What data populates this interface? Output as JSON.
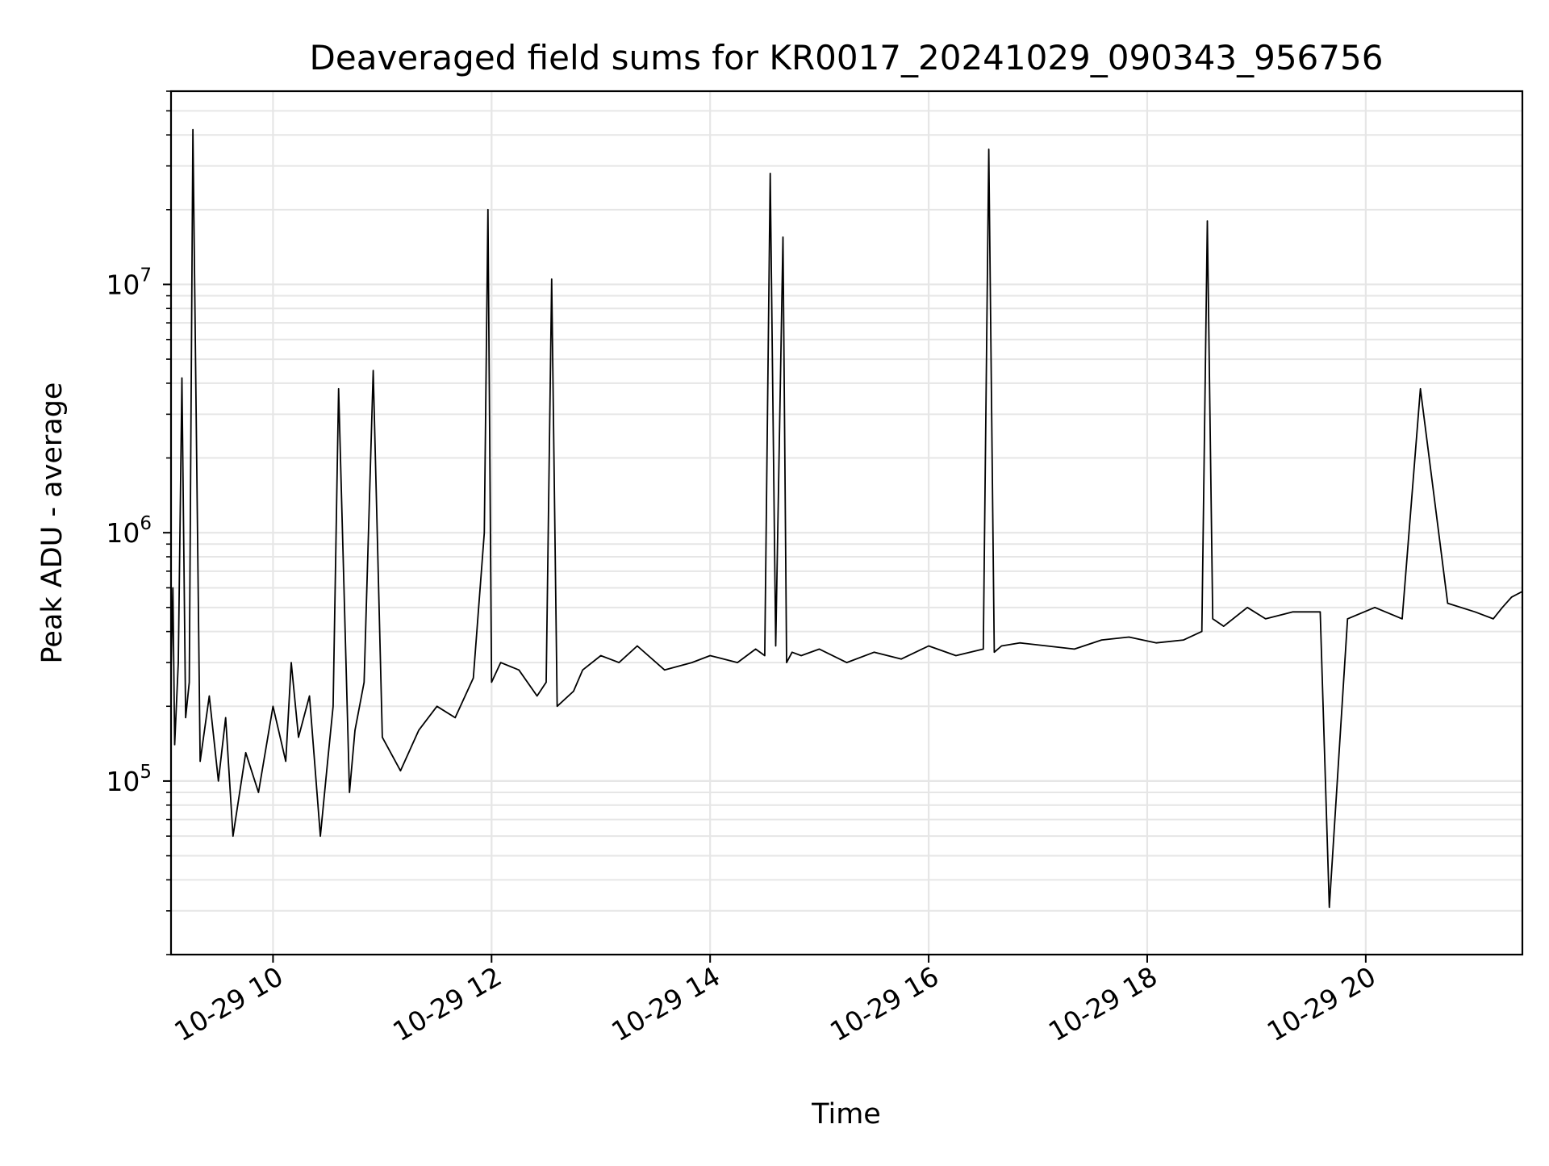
{
  "chart_data": {
    "type": "line",
    "title": "Deaveraged field sums for KR0017_20241029_090343_956756",
    "xlabel": "Time",
    "ylabel": "Peak ADU - average",
    "x_axis": {
      "kind": "datetime",
      "range": [
        "2024-10-29 09:04",
        "2024-10-29 21:26"
      ],
      "tick_labels": [
        "10-29 10",
        "10-29 12",
        "10-29 14",
        "10-29 16",
        "10-29 18",
        "10-29 20"
      ]
    },
    "y_axis": {
      "scale": "log",
      "range": [
        20000,
        60000000
      ],
      "tick_labels": [
        {
          "base": "10",
          "exponent": "5",
          "value": 100000
        },
        {
          "base": "10",
          "exponent": "6",
          "value": 1000000
        },
        {
          "base": "10",
          "exponent": "7",
          "value": 10000000
        }
      ]
    },
    "grid": true,
    "line_color": "#000000",
    "series": [
      {
        "x": [
          "2024-10-29 09:04",
          "2024-10-29 09:05",
          "2024-10-29 09:06",
          "2024-10-29 09:08",
          "2024-10-29 09:10",
          "2024-10-29 09:12",
          "2024-10-29 09:14",
          "2024-10-29 09:16",
          "2024-10-29 09:20",
          "2024-10-29 09:25",
          "2024-10-29 09:30",
          "2024-10-29 09:34",
          "2024-10-29 09:38",
          "2024-10-29 09:45",
          "2024-10-29 09:52",
          "2024-10-29 10:00",
          "2024-10-29 10:07",
          "2024-10-29 10:10",
          "2024-10-29 10:14",
          "2024-10-29 10:20",
          "2024-10-29 10:26",
          "2024-10-29 10:30",
          "2024-10-29 10:33",
          "2024-10-29 10:36",
          "2024-10-29 10:42",
          "2024-10-29 10:45",
          "2024-10-29 10:50",
          "2024-10-29 10:55",
          "2024-10-29 11:00",
          "2024-10-29 11:10",
          "2024-10-29 11:20",
          "2024-10-29 11:30",
          "2024-10-29 11:40",
          "2024-10-29 11:50",
          "2024-10-29 11:56",
          "2024-10-29 11:58",
          "2024-10-29 12:00",
          "2024-10-29 12:05",
          "2024-10-29 12:15",
          "2024-10-29 12:25",
          "2024-10-29 12:30",
          "2024-10-29 12:33",
          "2024-10-29 12:36",
          "2024-10-29 12:45",
          "2024-10-29 12:50",
          "2024-10-29 13:00",
          "2024-10-29 13:10",
          "2024-10-29 13:20",
          "2024-10-29 13:35",
          "2024-10-29 13:50",
          "2024-10-29 14:00",
          "2024-10-29 14:15",
          "2024-10-29 14:25",
          "2024-10-29 14:30",
          "2024-10-29 14:33",
          "2024-10-29 14:36",
          "2024-10-29 14:40",
          "2024-10-29 14:42",
          "2024-10-29 14:45",
          "2024-10-29 14:50",
          "2024-10-29 15:00",
          "2024-10-29 15:15",
          "2024-10-29 15:30",
          "2024-10-29 15:45",
          "2024-10-29 16:00",
          "2024-10-29 16:15",
          "2024-10-29 16:30",
          "2024-10-29 16:33",
          "2024-10-29 16:36",
          "2024-10-29 16:40",
          "2024-10-29 16:50",
          "2024-10-29 17:05",
          "2024-10-29 17:20",
          "2024-10-29 17:35",
          "2024-10-29 17:50",
          "2024-10-29 18:05",
          "2024-10-29 18:20",
          "2024-10-29 18:30",
          "2024-10-29 18:33",
          "2024-10-29 18:36",
          "2024-10-29 18:42",
          "2024-10-29 18:55",
          "2024-10-29 19:05",
          "2024-10-29 19:20",
          "2024-10-29 19:35",
          "2024-10-29 19:40",
          "2024-10-29 19:50",
          "2024-10-29 20:05",
          "2024-10-29 20:20",
          "2024-10-29 20:30",
          "2024-10-29 20:45",
          "2024-10-29 21:00",
          "2024-10-29 21:10",
          "2024-10-29 21:15",
          "2024-10-29 21:20",
          "2024-10-29 21:26"
        ],
        "y": [
          280000,
          600000,
          140000,
          300000,
          4200000,
          180000,
          250000,
          42000000,
          120000,
          220000,
          100000,
          180000,
          60000,
          130000,
          90000,
          200000,
          120000,
          300000,
          150000,
          220000,
          60000,
          120000,
          200000,
          3800000,
          90000,
          160000,
          250000,
          4500000,
          150000,
          110000,
          160000,
          200000,
          180000,
          260000,
          1000000,
          20000000,
          250000,
          300000,
          280000,
          220000,
          250000,
          10500000,
          200000,
          230000,
          280000,
          320000,
          300000,
          350000,
          280000,
          300000,
          320000,
          300000,
          340000,
          320000,
          28000000,
          350000,
          15500000,
          300000,
          330000,
          320000,
          340000,
          300000,
          330000,
          310000,
          350000,
          320000,
          340000,
          35000000,
          330000,
          350000,
          360000,
          350000,
          340000,
          370000,
          380000,
          360000,
          370000,
          400000,
          18000000,
          450000,
          420000,
          500000,
          450000,
          480000,
          480000,
          31000,
          450000,
          500000,
          450000,
          3800000,
          520000,
          480000,
          450000,
          500000,
          550000,
          580000
        ]
      }
    ]
  }
}
